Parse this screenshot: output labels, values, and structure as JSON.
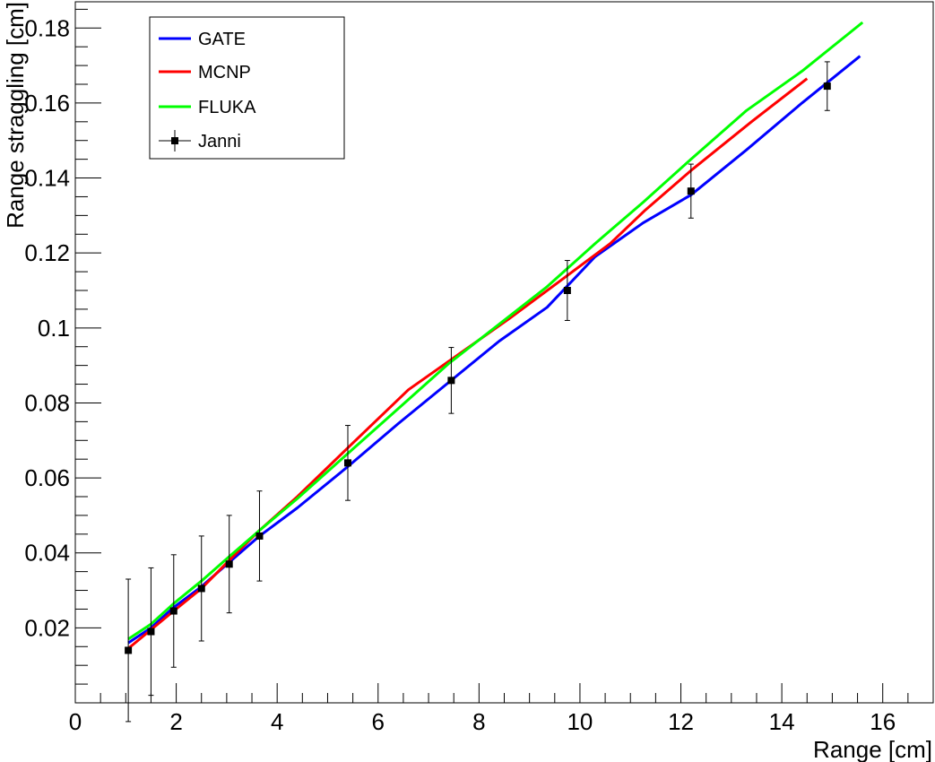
{
  "chart_data": {
    "type": "line",
    "xlabel": "Range [cm]",
    "ylabel": "Range straggling [cm]",
    "xlim": [
      0,
      17
    ],
    "ylim": [
      0,
      0.187
    ],
    "x_ticks": [
      0,
      2,
      4,
      6,
      8,
      10,
      12,
      14,
      16
    ],
    "x_tick_labels": [
      "0",
      "2",
      "4",
      "6",
      "8",
      "10",
      "12",
      "14",
      "16"
    ],
    "y_ticks": [
      0.02,
      0.04,
      0.06,
      0.08,
      0.1,
      0.12,
      0.14,
      0.16,
      0.18
    ],
    "y_tick_labels": [
      "0.02",
      "0.04",
      "0.06",
      "0.08",
      "0.1",
      "0.12",
      "0.14",
      "0.16",
      "0.18"
    ],
    "grid": false,
    "legend_position": "top-left",
    "series": [
      {
        "name": "GATE",
        "color": "#0000ff",
        "style": "line",
        "x": [
          1.05,
          1.5,
          1.95,
          2.5,
          3.05,
          3.65,
          4.4,
          5.4,
          6.4,
          7.4,
          8.4,
          9.35,
          10.3,
          11.25,
          12.2,
          13.3,
          14.4,
          15.55
        ],
        "y": [
          0.016,
          0.02,
          0.0255,
          0.031,
          0.0375,
          0.0445,
          0.052,
          0.063,
          0.0745,
          0.0855,
          0.0965,
          0.1055,
          0.119,
          0.128,
          0.1355,
          0.1475,
          0.16,
          0.1725
        ]
      },
      {
        "name": "MCNP",
        "color": "#ff0000",
        "style": "line",
        "x": [
          1.05,
          1.5,
          1.95,
          2.5,
          3.05,
          3.65,
          4.4,
          5.4,
          6.6,
          7.6,
          8.6,
          9.7,
          10.6,
          11.3,
          12.2,
          13.4,
          14.5
        ],
        "y": [
          0.0145,
          0.0195,
          0.0245,
          0.0305,
          0.038,
          0.046,
          0.055,
          0.068,
          0.0835,
          0.093,
          0.1025,
          0.1135,
          0.1225,
          0.1315,
          0.142,
          0.155,
          0.1665
        ]
      },
      {
        "name": "FLUKA",
        "color": "#00ff00",
        "style": "line",
        "x": [
          1.05,
          1.5,
          1.95,
          2.5,
          3.05,
          3.65,
          4.4,
          5.4,
          6.4,
          7.4,
          8.4,
          9.35,
          10.3,
          11.25,
          12.2,
          13.3,
          14.4,
          15.6
        ],
        "y": [
          0.017,
          0.021,
          0.0265,
          0.0325,
          0.039,
          0.046,
          0.0545,
          0.0665,
          0.0785,
          0.0905,
          0.101,
          0.111,
          0.1225,
          0.1335,
          0.145,
          0.158,
          0.1685,
          0.1815
        ]
      },
      {
        "name": "Janni",
        "color": "#000000",
        "style": "markers_with_error_bars",
        "x": [
          1.05,
          1.5,
          1.95,
          2.5,
          3.05,
          3.65,
          5.4,
          7.45,
          9.75,
          12.2,
          14.9
        ],
        "y": [
          0.014,
          0.019,
          0.0245,
          0.0305,
          0.037,
          0.0445,
          0.064,
          0.086,
          0.11,
          0.1365,
          0.1645
        ],
        "y_err": [
          0.019,
          0.017,
          0.015,
          0.014,
          0.013,
          0.012,
          0.01,
          0.0088,
          0.008,
          0.0072,
          0.0065
        ]
      }
    ]
  }
}
